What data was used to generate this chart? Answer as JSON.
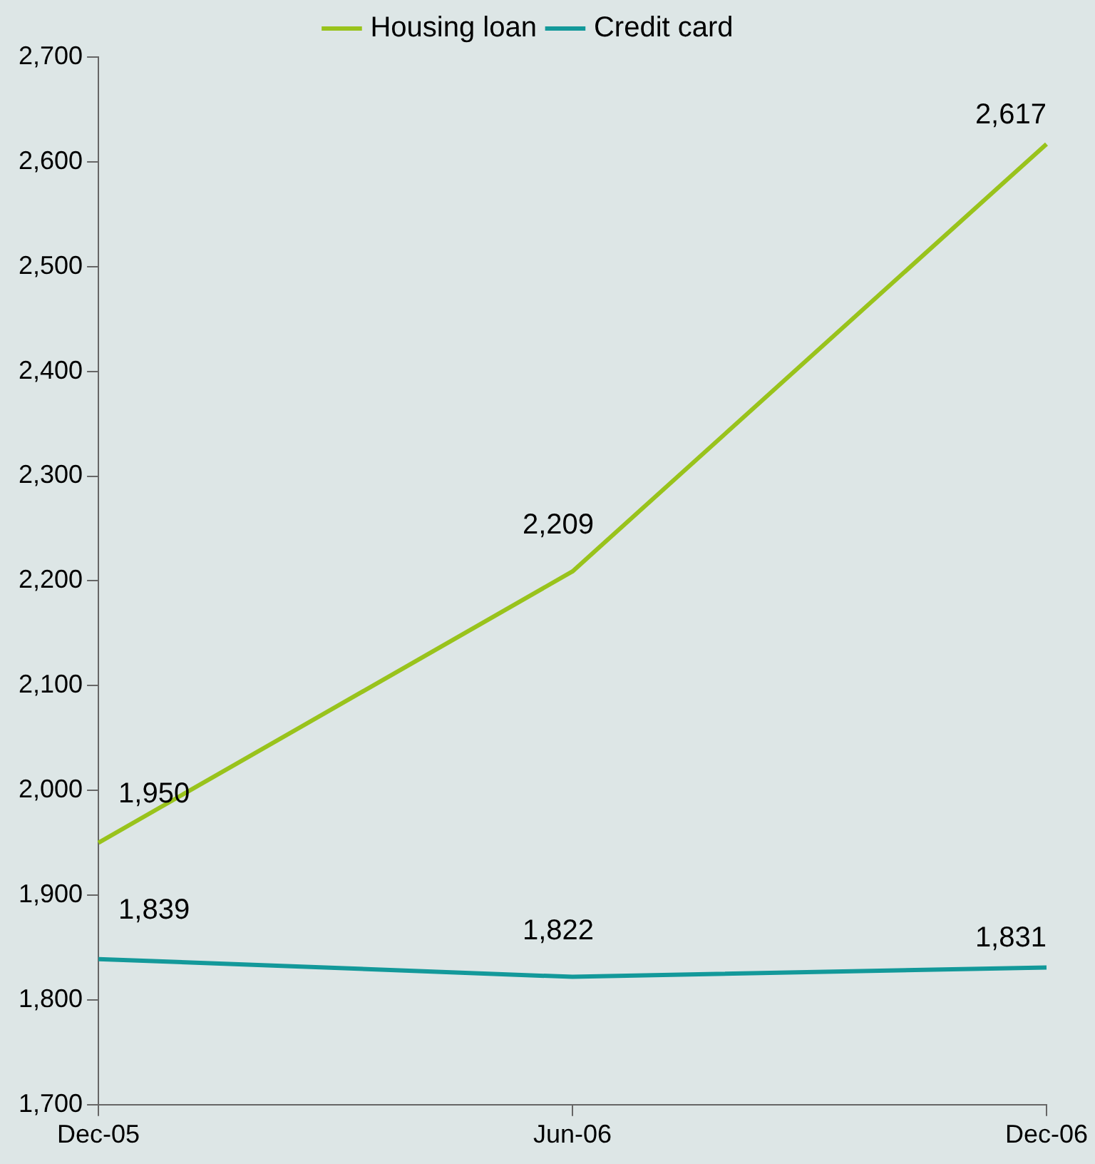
{
  "chart_data": {
    "type": "line",
    "categories": [
      "Dec-05",
      "Jun-06",
      "Dec-06"
    ],
    "series": [
      {
        "name": "Housing loan",
        "color": "#99c31c",
        "values": [
          1950,
          2209,
          2617
        ],
        "value_labels": [
          "1,950",
          "2,209",
          "2,617"
        ]
      },
      {
        "name": "Credit card",
        "color": "#13999a",
        "values": [
          1839,
          1822,
          1831
        ],
        "value_labels": [
          "1,839",
          "1,822",
          "1,831"
        ]
      }
    ],
    "ylim": [
      1700,
      2700
    ],
    "yticks": [
      {
        "value": 1700,
        "label": "1,700"
      },
      {
        "value": 1800,
        "label": "1,800"
      },
      {
        "value": 1900,
        "label": "1,900"
      },
      {
        "value": 2000,
        "label": "2,000"
      },
      {
        "value": 2100,
        "label": "2,100"
      },
      {
        "value": 2200,
        "label": "2,200"
      },
      {
        "value": 2300,
        "label": "2,300"
      },
      {
        "value": 2400,
        "label": "2,400"
      },
      {
        "value": 2500,
        "label": "2,500"
      },
      {
        "value": 2600,
        "label": "2,600"
      },
      {
        "value": 2700,
        "label": "2,700"
      }
    ],
    "legend": "top",
    "grid": false,
    "marker": "none",
    "line_style": "solid"
  }
}
